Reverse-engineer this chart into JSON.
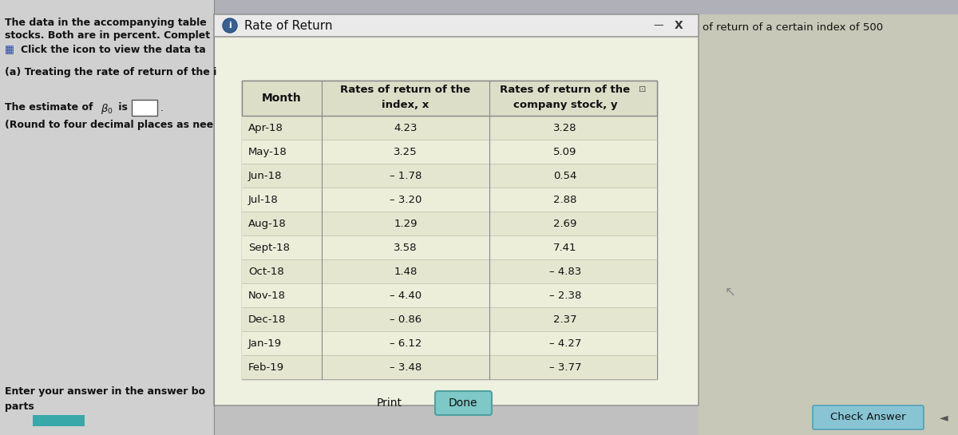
{
  "title": "Rate of Return",
  "months": [
    "Apr-18",
    "May-18",
    "Jun-18",
    "Jul-18",
    "Aug-18",
    "Sept-18",
    "Oct-18",
    "Nov-18",
    "Dec-18",
    "Jan-19",
    "Feb-19"
  ],
  "index_x": [
    4.23,
    3.25,
    -1.78,
    -3.2,
    1.29,
    3.58,
    1.48,
    -4.4,
    -0.86,
    -6.12,
    -3.48
  ],
  "stock_y": [
    3.28,
    5.09,
    0.54,
    2.88,
    2.69,
    7.41,
    -4.83,
    -2.38,
    2.37,
    -4.27,
    -3.77
  ],
  "col_header_month": "Month",
  "left_text_line1": "The data in the accompanying table",
  "left_text_line2": "stocks. Both are in percent. Complet",
  "left_text_line3": "Click the icon to view the data ta",
  "left_text_line4": "(a) Treating the rate of return of the i",
  "left_text_line6": "(Round to four decimal places as nee",
  "bottom_left_text": "Enter your answer in the answer bo",
  "bottom_left_text2": "parts",
  "right_text": "of return of a certain index of 500",
  "print_btn": "Print",
  "done_btn": "Done",
  "check_btn": "Check Answer",
  "dialog_bg": "#eef0e0",
  "dialog_border": "#999999",
  "left_bg": "#d0d0d0",
  "main_bg": "#c0c0c0",
  "right_bg": "#c8c8b8",
  "table_bg": "#e8ead8",
  "table_border": "#888888",
  "title_bar_bg": "#eaeaea",
  "btn_done_bg": "#7ec8c8",
  "btn_check_bg": "#88c4d4",
  "toolbar_bg": "#b0b0b8"
}
